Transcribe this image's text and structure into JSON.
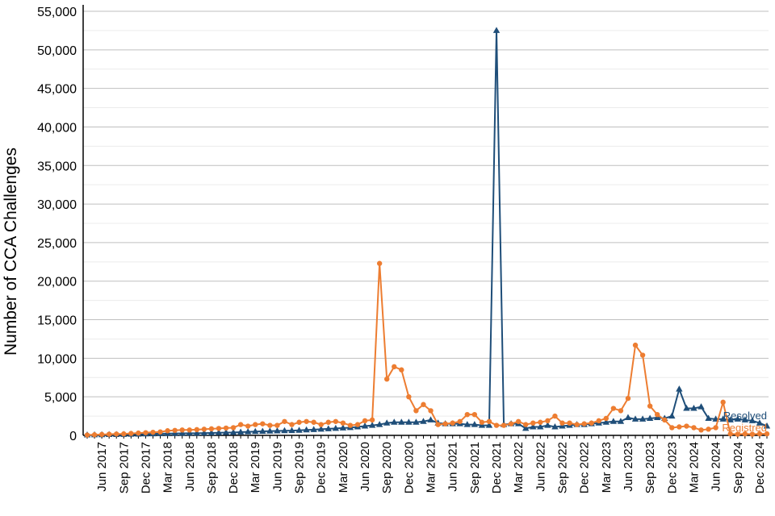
{
  "chart_data": {
    "type": "line",
    "title": "",
    "xlabel": "",
    "ylabel": "Number of CCA Challenges",
    "ylim": [
      0,
      55000
    ],
    "yticks": [
      0,
      5000,
      10000,
      15000,
      20000,
      25000,
      30000,
      35000,
      40000,
      45000,
      50000,
      55000
    ],
    "ytick_labels": [
      "0",
      "5,000",
      "10,000",
      "15,000",
      "20,000",
      "25,000",
      "30,000",
      "35,000",
      "40,000",
      "45,000",
      "50,000",
      "55,000"
    ],
    "grid": true,
    "x": [
      "Apr 2017",
      "May 2017",
      "Jun 2017",
      "Jul 2017",
      "Aug 2017",
      "Sep 2017",
      "Oct 2017",
      "Nov 2017",
      "Dec 2017",
      "Jan 2018",
      "Feb 2018",
      "Mar 2018",
      "Apr 2018",
      "May 2018",
      "Jun 2018",
      "Jul 2018",
      "Aug 2018",
      "Sep 2018",
      "Oct 2018",
      "Nov 2018",
      "Dec 2018",
      "Jan 2019",
      "Feb 2019",
      "Mar 2019",
      "Apr 2019",
      "May 2019",
      "Jun 2019",
      "Jul 2019",
      "Aug 2019",
      "Sep 2019",
      "Oct 2019",
      "Nov 2019",
      "Dec 2019",
      "Jan 2020",
      "Feb 2020",
      "Mar 2020",
      "Apr 2020",
      "May 2020",
      "Jun 2020",
      "Jul 2020",
      "Aug 2020",
      "Sep 2020",
      "Oct 2020",
      "Nov 2020",
      "Dec 2020",
      "Jan 2021",
      "Feb 2021",
      "Mar 2021",
      "Apr 2021",
      "May 2021",
      "Jun 2021",
      "Jul 2021",
      "Aug 2021",
      "Sep 2021",
      "Oct 2021",
      "Nov 2021",
      "Dec 2021",
      "Jan 2022",
      "Feb 2022",
      "Mar 2022",
      "Apr 2022",
      "May 2022",
      "Jun 2022",
      "Jul 2022",
      "Aug 2022",
      "Sep 2022",
      "Oct 2022",
      "Nov 2022",
      "Dec 2022",
      "Jan 2023",
      "Feb 2023",
      "Mar 2023",
      "Apr 2023",
      "May 2023",
      "Jun 2023",
      "Jul 2023",
      "Aug 2023",
      "Sep 2023",
      "Oct 2023",
      "Nov 2023",
      "Dec 2023",
      "Jan 2024",
      "Feb 2024",
      "Mar 2024",
      "Apr 2024",
      "May 2024",
      "Jun 2024",
      "Jul 2024",
      "Aug 2024",
      "Sep 2024",
      "Oct 2024",
      "Nov 2024",
      "Dec 2024",
      "Jan 2025"
    ],
    "x_tick_labels": [
      "Jun 2017",
      "Sep 2017",
      "Dec 2017",
      "Mar 2018",
      "Jun 2018",
      "Sep 2018",
      "Dec 2018",
      "Mar 2019",
      "Jun 2019",
      "Sep 2019",
      "Dec 2019",
      "Mar 2020",
      "Jun 2020",
      "Sep 2020",
      "Dec 2020",
      "Mar 2021",
      "Jun 2021",
      "Sep 2021",
      "Dec 2021",
      "Mar 2022",
      "Jun 2022",
      "Sep 2022",
      "Dec 2022",
      "Mar 2023",
      "Jun 2023",
      "Sep 2023",
      "Dec 2023",
      "Mar 2024",
      "Jun 2024",
      "Sep 2024",
      "Dec 2024"
    ],
    "series": [
      {
        "name": "Resolved",
        "color": "#1f4e79",
        "marker": "triangle",
        "values": [
          50,
          60,
          80,
          100,
          110,
          120,
          140,
          160,
          180,
          200,
          220,
          240,
          250,
          260,
          270,
          280,
          300,
          320,
          340,
          360,
          380,
          420,
          460,
          500,
          520,
          550,
          580,
          600,
          620,
          650,
          700,
          750,
          800,
          850,
          900,
          950,
          1000,
          1100,
          1200,
          1300,
          1400,
          1600,
          1700,
          1700,
          1700,
          1700,
          1800,
          2000,
          1600,
          1500,
          1500,
          1500,
          1400,
          1400,
          1300,
          1300,
          52500,
          1400,
          1500,
          1500,
          900,
          1100,
          1100,
          1300,
          1100,
          1200,
          1300,
          1400,
          1400,
          1500,
          1600,
          1700,
          1800,
          1800,
          2300,
          2100,
          2100,
          2200,
          2300,
          2200,
          2500,
          6000,
          3500,
          3500,
          3700,
          2200,
          2100,
          2100,
          2000,
          2100,
          2000,
          1900,
          1600,
          1200
        ]
      },
      {
        "name": "Registred",
        "color": "#ed7d31",
        "marker": "circle",
        "values": [
          50,
          80,
          120,
          150,
          180,
          200,
          250,
          300,
          350,
          400,
          450,
          600,
          650,
          700,
          700,
          750,
          800,
          850,
          900,
          950,
          1000,
          1400,
          1200,
          1400,
          1500,
          1300,
          1300,
          1800,
          1400,
          1700,
          1800,
          1700,
          1400,
          1700,
          1800,
          1600,
          1300,
          1400,
          1900,
          2000,
          22300,
          7300,
          8900,
          8500,
          5000,
          3200,
          4000,
          3200,
          1400,
          1500,
          1600,
          1800,
          2700,
          2700,
          1700,
          1800,
          1300,
          1300,
          1500,
          1800,
          1400,
          1600,
          1700,
          1900,
          2500,
          1600,
          1600,
          1400,
          1500,
          1600,
          1900,
          2200,
          3500,
          3200,
          4800,
          11700,
          10400,
          3800,
          2700,
          2000,
          1000,
          1100,
          1200,
          1000,
          700,
          800,
          1000,
          4300,
          200,
          150,
          200,
          150,
          200,
          200
        ]
      }
    ]
  }
}
